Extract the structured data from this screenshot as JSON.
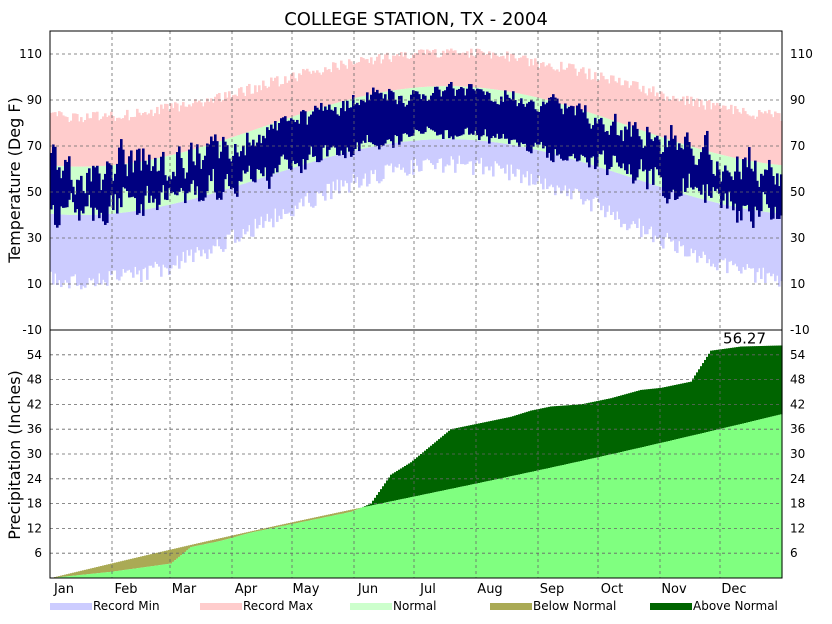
{
  "chart_data": [
    {
      "type": "bar",
      "title": "COLLEGE STATION, TX - 2004",
      "ylabel": "Temperature (Deg F)",
      "xlabel": "",
      "ylim": [
        -10,
        120
      ],
      "yticks": [
        -10,
        10,
        30,
        50,
        70,
        90,
        110
      ],
      "months": [
        "Jan",
        "Feb",
        "Mar",
        "Apr",
        "May",
        "Jun",
        "Jul",
        "Aug",
        "Sep",
        "Oct",
        "Nov",
        "Dec"
      ],
      "grid": true,
      "normal_band": {
        "low_min": 40,
        "low_max": 73,
        "high_min": 61,
        "high_max": 96
      },
      "record_band": {
        "min_min": 15,
        "min_max": 66,
        "max_min": 80,
        "max_max": 108
      },
      "series": [
        {
          "name": "Record Min",
          "color": "#ccccff"
        },
        {
          "name": "Record Max",
          "color": "#ffcccc"
        },
        {
          "name": "Normal",
          "color": "#ccffcc"
        },
        {
          "name": "Observed",
          "color": "#000080"
        }
      ]
    },
    {
      "type": "area",
      "ylabel": "Precipitation (Inches)",
      "ylim": [
        0,
        60
      ],
      "yticks": [
        6,
        12,
        18,
        24,
        30,
        36,
        42,
        48,
        54
      ],
      "months": [
        "Jan",
        "Feb",
        "Mar",
        "Apr",
        "May",
        "Jun",
        "Jul",
        "Aug",
        "Sep",
        "Oct",
        "Nov",
        "Dec"
      ],
      "grid": true,
      "annotation": "56.27",
      "total": 56.27,
      "normal_total": 39.7,
      "observed_cumulative": [
        [
          0,
          0
        ],
        [
          10,
          0.5
        ],
        [
          20,
          1.0
        ],
        [
          30,
          1.5
        ],
        [
          45,
          2.5
        ],
        [
          60,
          3.5
        ],
        [
          70,
          7.5
        ],
        [
          85,
          9.0
        ],
        [
          100,
          11.0
        ],
        [
          120,
          13.0
        ],
        [
          135,
          14.5
        ],
        [
          150,
          16.0
        ],
        [
          160,
          18.0
        ],
        [
          170,
          25.0
        ],
        [
          180,
          28.0
        ],
        [
          190,
          32.0
        ],
        [
          200,
          36.0
        ],
        [
          215,
          37.5
        ],
        [
          230,
          39.0
        ],
        [
          240,
          40.5
        ],
        [
          250,
          41.5
        ],
        [
          265,
          42.0
        ],
        [
          280,
          43.5
        ],
        [
          295,
          45.5
        ],
        [
          305,
          46.0
        ],
        [
          320,
          47.5
        ],
        [
          330,
          55.0
        ],
        [
          345,
          56.0
        ],
        [
          366,
          56.27
        ]
      ],
      "series": [
        {
          "name": "Normal",
          "color": "#80ff80"
        },
        {
          "name": "Below Normal",
          "color": "#aaaa55"
        },
        {
          "name": "Above Normal",
          "color": "#006400"
        }
      ]
    }
  ],
  "legend": [
    {
      "label": "Record Min",
      "color": "#ccccff"
    },
    {
      "label": "Record Max",
      "color": "#ffcccc"
    },
    {
      "label": "Normal",
      "color": "#ccffcc"
    },
    {
      "label": "Below Normal",
      "color": "#aaaa55"
    },
    {
      "label": "Above Normal",
      "color": "#006400"
    }
  ]
}
